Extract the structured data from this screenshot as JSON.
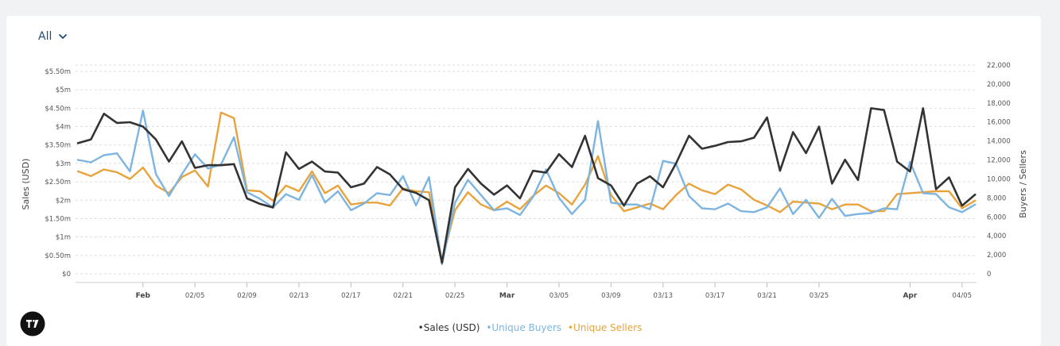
{
  "filter": {
    "label": "All"
  },
  "legend": [
    {
      "label": "•Sales (USD)",
      "color": "#333333"
    },
    {
      "label": "•Unique Buyers",
      "color": "#7eb4e0"
    },
    {
      "label": "•Unique Sellers",
      "color": "#e8a33c"
    }
  ],
  "chart_data": {
    "type": "line",
    "y_left": {
      "label": "Sales (USD)",
      "ticks": [
        0,
        0.5,
        1,
        1.5,
        2,
        2.5,
        3,
        3.5,
        4,
        4.5,
        5,
        5.5
      ],
      "tick_labels": [
        "$0",
        "$0.50m",
        "$1m",
        "$1.50m",
        "$2m",
        "$2.50m",
        "$3m",
        "$3.50m",
        "$4m",
        "$4.50m",
        "$5m",
        "$5.50m"
      ],
      "unit": "USD millions"
    },
    "y_right": {
      "label": "Buyers / Sellers",
      "ticks": [
        0,
        2000,
        4000,
        6000,
        8000,
        10000,
        12000,
        14000,
        16000,
        18000,
        20000,
        22000
      ],
      "tick_labels": [
        "0",
        "2,000",
        "4,000",
        "6,000",
        "8,000",
        "10,000",
        "12,000",
        "14,000",
        "16,000",
        "18,000",
        "20,000",
        "22,000"
      ]
    },
    "x_ticks": [
      {
        "index": 5,
        "label": "Feb",
        "month": true
      },
      {
        "index": 9,
        "label": "02/05"
      },
      {
        "index": 13,
        "label": "02/09"
      },
      {
        "index": 17,
        "label": "02/13"
      },
      {
        "index": 21,
        "label": "02/17"
      },
      {
        "index": 25,
        "label": "02/21"
      },
      {
        "index": 29,
        "label": "02/25"
      },
      {
        "index": 33,
        "label": "Mar",
        "month": true
      },
      {
        "index": 37,
        "label": "03/05"
      },
      {
        "index": 41,
        "label": "03/09"
      },
      {
        "index": 45,
        "label": "03/13"
      },
      {
        "index": 49,
        "label": "03/17"
      },
      {
        "index": 53,
        "label": "03/21"
      },
      {
        "index": 57,
        "label": "03/25"
      },
      {
        "index": 64,
        "label": "Apr",
        "month": true
      },
      {
        "index": 68,
        "label": "04/05"
      }
    ],
    "series": [
      {
        "name": "Sales (USD)",
        "axis": "left",
        "color": "#333333",
        "values": [
          3.55,
          3.65,
          4.35,
          4.1,
          4.12,
          4.0,
          3.65,
          3.05,
          3.6,
          2.88,
          2.95,
          2.95,
          2.98,
          2.05,
          1.9,
          1.8,
          3.3,
          2.85,
          3.05,
          2.78,
          2.75,
          2.35,
          2.45,
          2.9,
          2.7,
          2.3,
          2.2,
          2.0,
          0.3,
          2.35,
          2.85,
          2.45,
          2.15,
          2.4,
          2.05,
          2.8,
          2.75,
          3.25,
          2.9,
          3.75,
          2.6,
          2.4,
          1.85,
          2.45,
          2.65,
          2.35,
          3.0,
          3.75,
          3.4,
          3.48,
          3.58,
          3.6,
          3.7,
          4.25,
          2.8,
          3.85,
          3.28,
          4.0,
          2.45,
          3.1,
          2.55,
          4.5,
          4.45,
          3.05,
          2.78,
          4.5,
          2.3,
          2.62,
          1.85,
          2.15
        ]
      },
      {
        "name": "Unique Buyers",
        "axis": "right",
        "color": "#7eb4e0",
        "values": [
          12000,
          11750,
          12500,
          12700,
          10800,
          17200,
          10500,
          8200,
          10500,
          12600,
          11100,
          11500,
          14400,
          8600,
          7900,
          7000,
          8400,
          7800,
          10400,
          7500,
          8700,
          6700,
          7400,
          8500,
          8300,
          10300,
          7200,
          10200,
          1000,
          7500,
          9900,
          8300,
          6700,
          6900,
          6200,
          8100,
          11000,
          8000,
          6300,
          7800,
          16100,
          7500,
          7300,
          7300,
          6800,
          11900,
          11600,
          8200,
          6900,
          6800,
          7400,
          6600,
          6500,
          7000,
          9000,
          6300,
          7800,
          5900,
          7900,
          6100,
          6300,
          6400,
          6900,
          6800,
          11800,
          8500,
          8400,
          7000,
          6500,
          7300
        ]
      },
      {
        "name": "Unique Sellers",
        "axis": "right",
        "color": "#e8a33c",
        "values": [
          10800,
          10300,
          11000,
          10700,
          10000,
          11200,
          9300,
          8500,
          10200,
          10900,
          9200,
          17000,
          16400,
          8800,
          8700,
          7700,
          9300,
          8700,
          10800,
          8500,
          9300,
          7300,
          7500,
          7500,
          7200,
          9000,
          8700,
          8600,
          1400,
          6700,
          8600,
          7300,
          6700,
          7600,
          6800,
          8200,
          9300,
          8500,
          7300,
          9400,
          12400,
          8300,
          6600,
          7000,
          7400,
          6800,
          8300,
          9500,
          8800,
          8400,
          9400,
          8900,
          7800,
          7200,
          6500,
          7600,
          7500,
          7400,
          6800,
          7300,
          7300,
          6600,
          6600,
          8400,
          8500,
          8600,
          8700,
          8700,
          6900,
          7700
        ]
      }
    ]
  }
}
